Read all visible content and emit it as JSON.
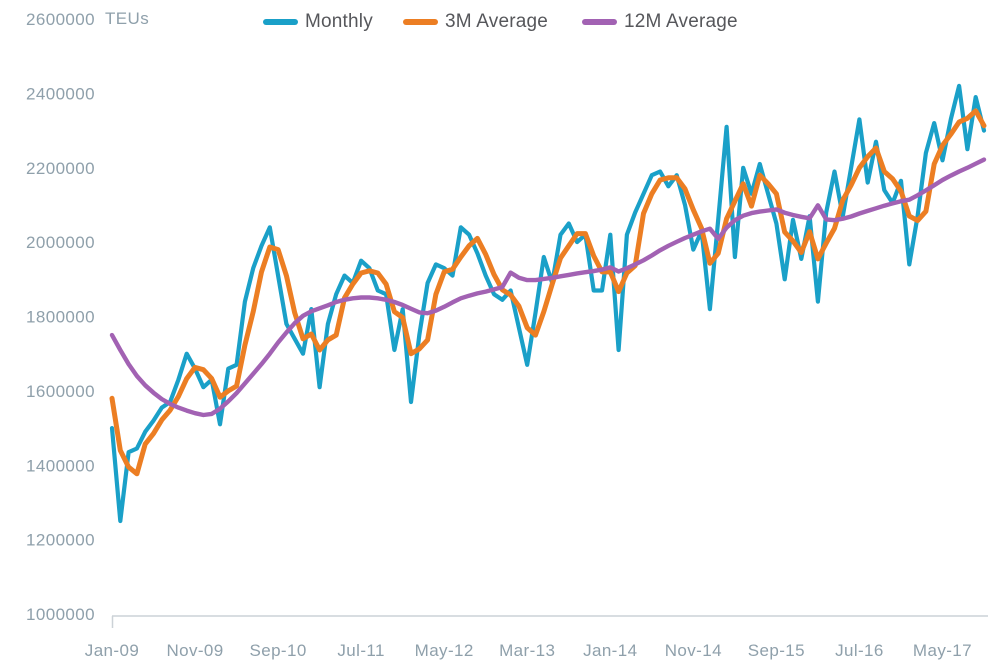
{
  "chart": {
    "unit_label": "TEUs",
    "background_color": "#ffffff",
    "axis_text_color": "#8fa0ab",
    "legend_text_color": "#56575b",
    "axis_line_color": "#ccd2d7"
  },
  "chart_data": {
    "type": "line",
    "title": "",
    "ylabel": "TEUs",
    "xlabel": "",
    "grid": false,
    "legend_position": "top-center",
    "ylim": [
      1000000,
      2600000
    ],
    "y_ticks": [
      2600000,
      2400000,
      2200000,
      2000000,
      1800000,
      1600000,
      1400000,
      1200000,
      1000000
    ],
    "x_tick_every": 10,
    "x_tick_labels": [
      "Jan-09",
      "Nov-09",
      "Sep-10",
      "Jul-11",
      "May-12",
      "Mar-13",
      "Jan-14",
      "Nov-14",
      "Sep-15",
      "Jul-16",
      "May-17"
    ],
    "categories": [
      "Jan-09",
      "Feb-09",
      "Mar-09",
      "Apr-09",
      "May-09",
      "Jun-09",
      "Jul-09",
      "Aug-09",
      "Sep-09",
      "Oct-09",
      "Nov-09",
      "Dec-09",
      "Jan-10",
      "Feb-10",
      "Mar-10",
      "Apr-10",
      "May-10",
      "Jun-10",
      "Jul-10",
      "Aug-10",
      "Sep-10",
      "Oct-10",
      "Nov-10",
      "Dec-10",
      "Jan-11",
      "Feb-11",
      "Mar-11",
      "Apr-11",
      "May-11",
      "Jun-11",
      "Jul-11",
      "Aug-11",
      "Sep-11",
      "Oct-11",
      "Nov-11",
      "Dec-11",
      "Jan-12",
      "Feb-12",
      "Mar-12",
      "Apr-12",
      "May-12",
      "Jun-12",
      "Jul-12",
      "Aug-12",
      "Sep-12",
      "Oct-12",
      "Nov-12",
      "Dec-12",
      "Jan-13",
      "Feb-13",
      "Mar-13",
      "Apr-13",
      "May-13",
      "Jun-13",
      "Jul-13",
      "Aug-13",
      "Sep-13",
      "Oct-13",
      "Nov-13",
      "Dec-13",
      "Jan-14",
      "Feb-14",
      "Mar-14",
      "Apr-14",
      "May-14",
      "Jun-14",
      "Jul-14",
      "Aug-14",
      "Sep-14",
      "Oct-14",
      "Nov-14",
      "Dec-14",
      "Jan-15",
      "Feb-15",
      "Mar-15",
      "Apr-15",
      "May-15",
      "Jun-15",
      "Jul-15",
      "Aug-15",
      "Sep-15",
      "Oct-15",
      "Nov-15",
      "Dec-15",
      "Jan-16",
      "Feb-16",
      "Mar-16",
      "Apr-16",
      "May-16",
      "Jun-16",
      "Jul-16",
      "Aug-16",
      "Sep-16",
      "Oct-16",
      "Nov-16",
      "Dec-16",
      "Jan-17",
      "Feb-17",
      "Mar-17",
      "Apr-17",
      "May-17",
      "Jun-17",
      "Jul-17",
      "Aug-17",
      "Sep-17",
      "Oct-17"
    ],
    "series": [
      {
        "name": "Monthly",
        "color": "#1aa0c8",
        "line_width": 4.2,
        "values": [
          1500000,
          1250000,
          1435000,
          1445000,
          1490000,
          1520000,
          1555000,
          1570000,
          1630000,
          1700000,
          1660000,
          1610000,
          1630000,
          1510000,
          1660000,
          1670000,
          1840000,
          1930000,
          1990000,
          2040000,
          1910000,
          1780000,
          1740000,
          1700000,
          1820000,
          1610000,
          1780000,
          1860000,
          1910000,
          1890000,
          1950000,
          1930000,
          1870000,
          1860000,
          1710000,
          1820000,
          1570000,
          1750000,
          1890000,
          1940000,
          1930000,
          1910000,
          2040000,
          2020000,
          1970000,
          1910000,
          1860000,
          1845000,
          1870000,
          1770000,
          1670000,
          1810000,
          1960000,
          1890000,
          2020000,
          2050000,
          2000000,
          2020000,
          1870000,
          1870000,
          2020000,
          1710000,
          2020000,
          2080000,
          2130000,
          2180000,
          2190000,
          2150000,
          2180000,
          2100000,
          1980000,
          2030000,
          1820000,
          2060000,
          2310000,
          1960000,
          2200000,
          2130000,
          2210000,
          2130000,
          2050000,
          1900000,
          2060000,
          1955000,
          2070000,
          1840000,
          2080000,
          2190000,
          2070000,
          2200000,
          2330000,
          2160000,
          2270000,
          2140000,
          2105000,
          2165000,
          1940000,
          2070000,
          2240000,
          2320000,
          2220000,
          2330000,
          2420000,
          2250000,
          2390000,
          2300000
        ]
      },
      {
        "name": "3M Average",
        "color": "#ec7e23",
        "line_width": 5,
        "values": [
          1580000,
          1440000,
          1395000,
          1377000,
          1457000,
          1485000,
          1522000,
          1548000,
          1585000,
          1633000,
          1663000,
          1657000,
          1633000,
          1583000,
          1600000,
          1613000,
          1723000,
          1813000,
          1920000,
          1987000,
          1980000,
          1910000,
          1810000,
          1740000,
          1753000,
          1710000,
          1737000,
          1750000,
          1850000,
          1887000,
          1917000,
          1923000,
          1917000,
          1887000,
          1813000,
          1797000,
          1700000,
          1713000,
          1737000,
          1860000,
          1920000,
          1927000,
          1960000,
          1990000,
          2010000,
          1967000,
          1913000,
          1872000,
          1858000,
          1828000,
          1770000,
          1750000,
          1813000,
          1887000,
          1957000,
          1990000,
          2023000,
          2023000,
          1963000,
          1920000,
          1920000,
          1867000,
          1917000,
          1937000,
          2077000,
          2130000,
          2167000,
          2173000,
          2173000,
          2143000,
          2087000,
          2037000,
          1943000,
          1970000,
          2063000,
          2110000,
          2157000,
          2097000,
          2180000,
          2157000,
          2130000,
          2027000,
          2003000,
          1972000,
          2028000,
          1955000,
          1997000,
          2037000,
          2113000,
          2153000,
          2200000,
          2230000,
          2253000,
          2190000,
          2170000,
          2137000,
          2070000,
          2058000,
          2083000,
          2210000,
          2260000,
          2290000,
          2323000,
          2333000,
          2353000,
          2313000
        ]
      },
      {
        "name": "12M Average",
        "color": "#a262b3",
        "line_width": 4.4,
        "values": [
          1750000,
          1710000,
          1672000,
          1640000,
          1615000,
          1595000,
          1578000,
          1565000,
          1555000,
          1547000,
          1540000,
          1535000,
          1538000,
          1552000,
          1572000,
          1594000,
          1620000,
          1646000,
          1672000,
          1700000,
          1730000,
          1757000,
          1782000,
          1802000,
          1814000,
          1822000,
          1830000,
          1839000,
          1845000,
          1849000,
          1851000,
          1851000,
          1849000,
          1845000,
          1839000,
          1831000,
          1821000,
          1811000,
          1809000,
          1816000,
          1826000,
          1838000,
          1849000,
          1856000,
          1862000,
          1867000,
          1873000,
          1879000,
          1918000,
          1904000,
          1898000,
          1898000,
          1901000,
          1904000,
          1908000,
          1912000,
          1916000,
          1919000,
          1922000,
          1926000,
          1932000,
          1921000,
          1930000,
          1940000,
          1951000,
          1964000,
          1978000,
          1990000,
          2001000,
          2011000,
          2020000,
          2029000,
          2036000,
          2009000,
          2039000,
          2059000,
          2071000,
          2078000,
          2082000,
          2085000,
          2088000,
          2079000,
          2073000,
          2068000,
          2064000,
          2099000,
          2061000,
          2059000,
          2063000,
          2069000,
          2077000,
          2084000,
          2091000,
          2098000,
          2104000,
          2110000,
          2114000,
          2126000,
          2139000,
          2153000,
          2167000,
          2179000,
          2190000,
          2200000,
          2211000,
          2222000
        ]
      }
    ]
  }
}
